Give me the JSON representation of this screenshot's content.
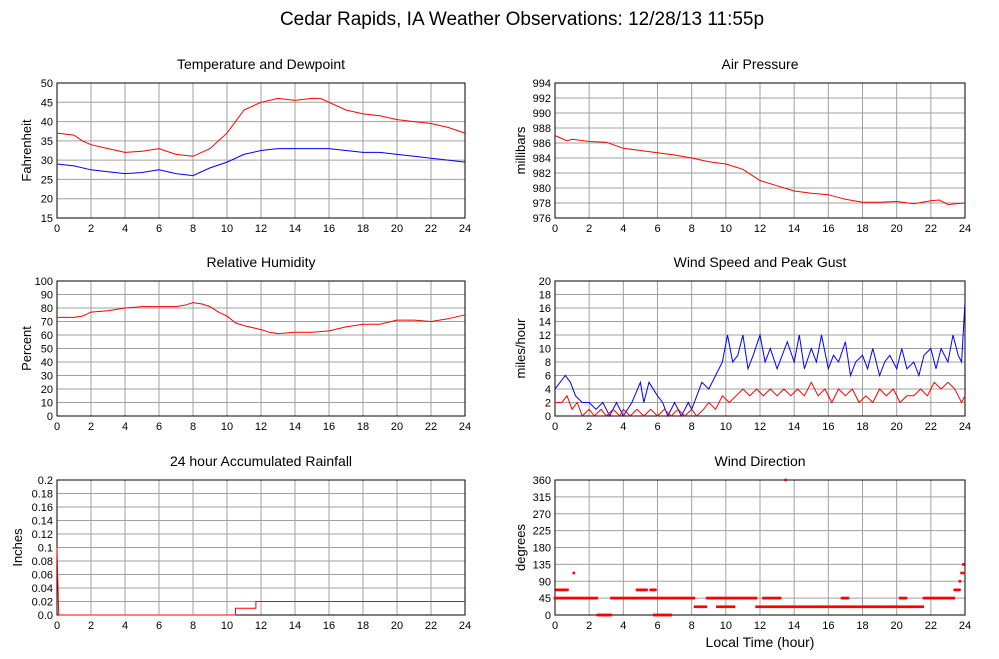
{
  "title": "Cedar Rapids, IA Weather Observations: 12/28/13 11:55p",
  "xlabel": "Local Time (hour)",
  "colors": {
    "red": "#ff0000",
    "blue": "#0000ff",
    "grid": "#a0a0a0"
  },
  "chart_data": [
    {
      "id": "temp",
      "type": "line",
      "title": "Temperature and Dewpoint",
      "ylabel": "Fahrenheit",
      "xlim": [
        0,
        24
      ],
      "ylim": [
        15,
        50
      ],
      "xticks": [
        0,
        2,
        4,
        6,
        8,
        10,
        12,
        14,
        16,
        18,
        20,
        22,
        24
      ],
      "yticks": [
        15,
        20,
        25,
        30,
        35,
        40,
        45,
        50
      ],
      "grid": true,
      "series": [
        {
          "color": "#ff0000",
          "x": [
            0,
            1,
            1.5,
            2,
            3,
            4,
            5,
            6,
            7,
            8,
            8.5,
            9,
            9.5,
            10,
            10.5,
            11,
            12,
            13,
            14,
            15,
            15.5,
            16,
            17,
            18,
            19,
            20,
            21,
            22,
            23,
            24
          ],
          "y": [
            37,
            36.5,
            35,
            34,
            33,
            32,
            32.3,
            33,
            31.5,
            31,
            32,
            33,
            35,
            37,
            40,
            43,
            45,
            46,
            45.5,
            46,
            46,
            45,
            43,
            42,
            41.5,
            40.5,
            40,
            39.5,
            38.5,
            37
          ]
        },
        {
          "color": "#0000ff",
          "x": [
            0,
            1,
            2,
            3,
            4,
            5,
            6,
            7,
            8,
            9,
            10,
            11,
            12,
            13,
            14,
            15,
            16,
            17,
            18,
            19,
            20,
            21,
            22,
            23,
            24
          ],
          "y": [
            29,
            28.5,
            27.5,
            27,
            26.5,
            26.8,
            27.5,
            26.5,
            26,
            28,
            29.5,
            31.5,
            32.5,
            33,
            33,
            33,
            33,
            32.5,
            32,
            32,
            31.5,
            31,
            30.5,
            30,
            29.5
          ]
        }
      ]
    },
    {
      "id": "pres",
      "type": "line",
      "title": "Air Pressure",
      "ylabel": "millibars",
      "xlim": [
        0,
        24
      ],
      "ylim": [
        976,
        994
      ],
      "xticks": [
        0,
        2,
        4,
        6,
        8,
        10,
        12,
        14,
        16,
        18,
        20,
        22,
        24
      ],
      "yticks": [
        976,
        978,
        980,
        982,
        984,
        986,
        988,
        990,
        992,
        994
      ],
      "grid": true,
      "series": [
        {
          "color": "#ff0000",
          "x": [
            0,
            0.7,
            1,
            2,
            3,
            4,
            5,
            6,
            7,
            8,
            9,
            10,
            11,
            12,
            13,
            14,
            15,
            16,
            17,
            18,
            19,
            20,
            21,
            22,
            22.5,
            23,
            24
          ],
          "y": [
            987,
            986.3,
            986.5,
            986.2,
            986.1,
            985.3,
            985,
            984.7,
            984.4,
            984,
            983.5,
            983.2,
            982.5,
            981,
            980.3,
            979.6,
            979.3,
            979.1,
            978.5,
            978.1,
            978.1,
            978.2,
            977.9,
            978.3,
            978.4,
            977.8,
            978
          ]
        }
      ]
    },
    {
      "id": "rh",
      "type": "line",
      "title": "Relative Humidity",
      "ylabel": "Percent",
      "xlim": [
        0,
        24
      ],
      "ylim": [
        0,
        100
      ],
      "xticks": [
        0,
        2,
        4,
        6,
        8,
        10,
        12,
        14,
        16,
        18,
        20,
        22,
        24
      ],
      "yticks": [
        0,
        10,
        20,
        30,
        40,
        50,
        60,
        70,
        80,
        90,
        100
      ],
      "grid": true,
      "series": [
        {
          "color": "#ff0000",
          "x": [
            0,
            1,
            1.5,
            2,
            3,
            4,
            5,
            6,
            7,
            7.5,
            8,
            8.5,
            9,
            9.5,
            10,
            10.5,
            11,
            12,
            12.5,
            13,
            14,
            15,
            16,
            17,
            18,
            19,
            20,
            21,
            22,
            23,
            24
          ],
          "y": [
            73,
            73,
            74,
            77,
            78,
            80,
            81,
            81,
            81,
            82,
            84,
            83,
            81,
            77,
            74,
            69,
            67,
            64,
            62,
            61,
            62,
            62,
            63,
            66,
            68,
            68,
            71,
            71,
            70,
            72,
            75
          ]
        }
      ]
    },
    {
      "id": "wind",
      "type": "line",
      "title": "Wind Speed and Peak Gust",
      "ylabel": "miles/hour",
      "xlim": [
        0,
        24
      ],
      "ylim": [
        0,
        20
      ],
      "xticks": [
        0,
        2,
        4,
        6,
        8,
        10,
        12,
        14,
        16,
        18,
        20,
        22,
        24
      ],
      "yticks": [
        0,
        2,
        4,
        6,
        8,
        10,
        12,
        14,
        16,
        18,
        20
      ],
      "grid": true,
      "series": [
        {
          "color": "#0000ff",
          "x": [
            0,
            0.3,
            0.6,
            0.9,
            1.2,
            1.6,
            2,
            2.4,
            2.8,
            3.2,
            3.6,
            4,
            4.5,
            5,
            5.2,
            5.5,
            6,
            6.3,
            6.6,
            7,
            7.4,
            7.8,
            8,
            8.3,
            8.6,
            9,
            9.4,
            9.8,
            10.1,
            10.4,
            10.7,
            11,
            11.3,
            11.6,
            12,
            12.3,
            12.6,
            13,
            13.3,
            13.6,
            14,
            14.3,
            14.6,
            15,
            15.3,
            15.6,
            16,
            16.3,
            16.6,
            17,
            17.3,
            17.6,
            18,
            18.3,
            18.6,
            19,
            19.3,
            19.6,
            20,
            20.3,
            20.6,
            21,
            21.3,
            21.6,
            22,
            22.3,
            22.6,
            23,
            23.3,
            23.6,
            23.8,
            24
          ],
          "y": [
            4,
            5,
            6,
            5,
            3,
            2,
            2,
            1,
            2,
            0,
            2,
            0,
            2,
            5,
            2,
            5,
            3,
            2,
            0,
            2,
            0,
            2,
            1,
            3,
            5,
            4,
            6,
            8,
            12,
            8,
            9,
            12,
            7,
            9,
            12,
            8,
            10,
            7,
            9,
            11,
            8,
            12,
            7,
            10,
            8,
            12,
            7,
            9,
            8,
            11,
            6,
            8,
            9,
            7,
            10,
            6,
            8,
            9,
            7,
            10,
            7,
            8,
            6,
            9,
            10,
            7,
            10,
            8,
            12,
            9,
            8,
            17
          ]
        },
        {
          "color": "#ff0000",
          "x": [
            0,
            0.4,
            0.7,
            1,
            1.3,
            1.6,
            2,
            2.3,
            2.7,
            3,
            3.4,
            3.8,
            4,
            4.4,
            4.8,
            5.2,
            5.6,
            6,
            6.4,
            6.8,
            7.2,
            7.6,
            8,
            8.3,
            8.7,
            9,
            9.4,
            9.8,
            10.2,
            10.6,
            11,
            11.4,
            11.8,
            12.2,
            12.6,
            13,
            13.4,
            13.8,
            14.2,
            14.6,
            15,
            15.4,
            15.8,
            16.2,
            16.6,
            17,
            17.4,
            17.8,
            18.2,
            18.6,
            19,
            19.4,
            19.8,
            20.2,
            20.6,
            21,
            21.4,
            21.8,
            22.2,
            22.6,
            23,
            23.4,
            23.8,
            24
          ],
          "y": [
            2,
            2,
            3,
            1,
            2,
            0,
            1,
            0,
            1,
            0,
            1,
            0,
            1,
            0,
            1,
            0,
            1,
            0,
            1,
            0,
            1,
            0,
            1,
            0,
            1,
            2,
            1,
            3,
            2,
            3,
            4,
            3,
            4,
            3,
            4,
            3,
            4,
            3,
            4,
            3,
            5,
            3,
            4,
            2,
            4,
            3,
            4,
            2,
            3,
            2,
            4,
            3,
            4,
            2,
            3,
            3,
            4,
            3,
            5,
            4,
            5,
            4,
            2,
            3
          ]
        }
      ]
    },
    {
      "id": "rain",
      "type": "line",
      "title": "24 hour Accumulated Rainfall",
      "ylabel": "Inches",
      "xlim": [
        0,
        24
      ],
      "ylim": [
        0,
        0.2
      ],
      "xticks": [
        0,
        2,
        4,
        6,
        8,
        10,
        12,
        14,
        16,
        18,
        20,
        22,
        24
      ],
      "yticks": [
        "0.0",
        "0.02",
        "0.04",
        "0.06",
        "0.08",
        "0.1",
        "0.12",
        "0.14",
        "0.16",
        "0.18",
        "0.2"
      ],
      "grid": true,
      "series": [
        {
          "color": "#ff0000",
          "x": [
            0,
            0.1,
            10.5,
            10.5,
            11.7,
            11.7,
            24
          ],
          "y": [
            0.1,
            0,
            0,
            0.01,
            0.01,
            0.02,
            0.02
          ]
        }
      ]
    },
    {
      "id": "dir",
      "type": "scatter",
      "title": "Wind Direction",
      "ylabel": "degrees",
      "xlim": [
        0,
        24
      ],
      "ylim": [
        0,
        360
      ],
      "xticks": [
        0,
        2,
        4,
        6,
        8,
        10,
        12,
        14,
        16,
        18,
        20,
        22,
        24
      ],
      "yticks": [
        0,
        45,
        90,
        135,
        180,
        225,
        270,
        315,
        360
      ],
      "grid": true,
      "series": [
        {
          "color": "#ff0000",
          "segments": [
            [
              0,
              2.5,
              45
            ],
            [
              2.5,
              3.3,
              0
            ],
            [
              3.3,
              8.2,
              45
            ],
            [
              5.8,
              6.8,
              0
            ],
            [
              8.2,
              8.9,
              22
            ],
            [
              8.9,
              11.8,
              45
            ],
            [
              11.8,
              21.6,
              22
            ],
            [
              21.6,
              23.4,
              45
            ],
            [
              9.5,
              10.5,
              22
            ],
            [
              12.2,
              13.2,
              45
            ],
            [
              16.8,
              17.2,
              45
            ],
            [
              20.2,
              20.6,
              45
            ],
            [
              23.4,
              23.7,
              67
            ],
            [
              0.1,
              0.8,
              67
            ],
            [
              4.8,
              5.4,
              67
            ],
            [
              5.6,
              5.9,
              67
            ]
          ],
          "points": [
            [
              1.1,
              112
            ],
            [
              13.5,
              360
            ],
            [
              23.7,
              90
            ],
            [
              23.8,
              112
            ],
            [
              23.9,
              135
            ],
            [
              23.95,
              112
            ]
          ]
        }
      ]
    }
  ]
}
